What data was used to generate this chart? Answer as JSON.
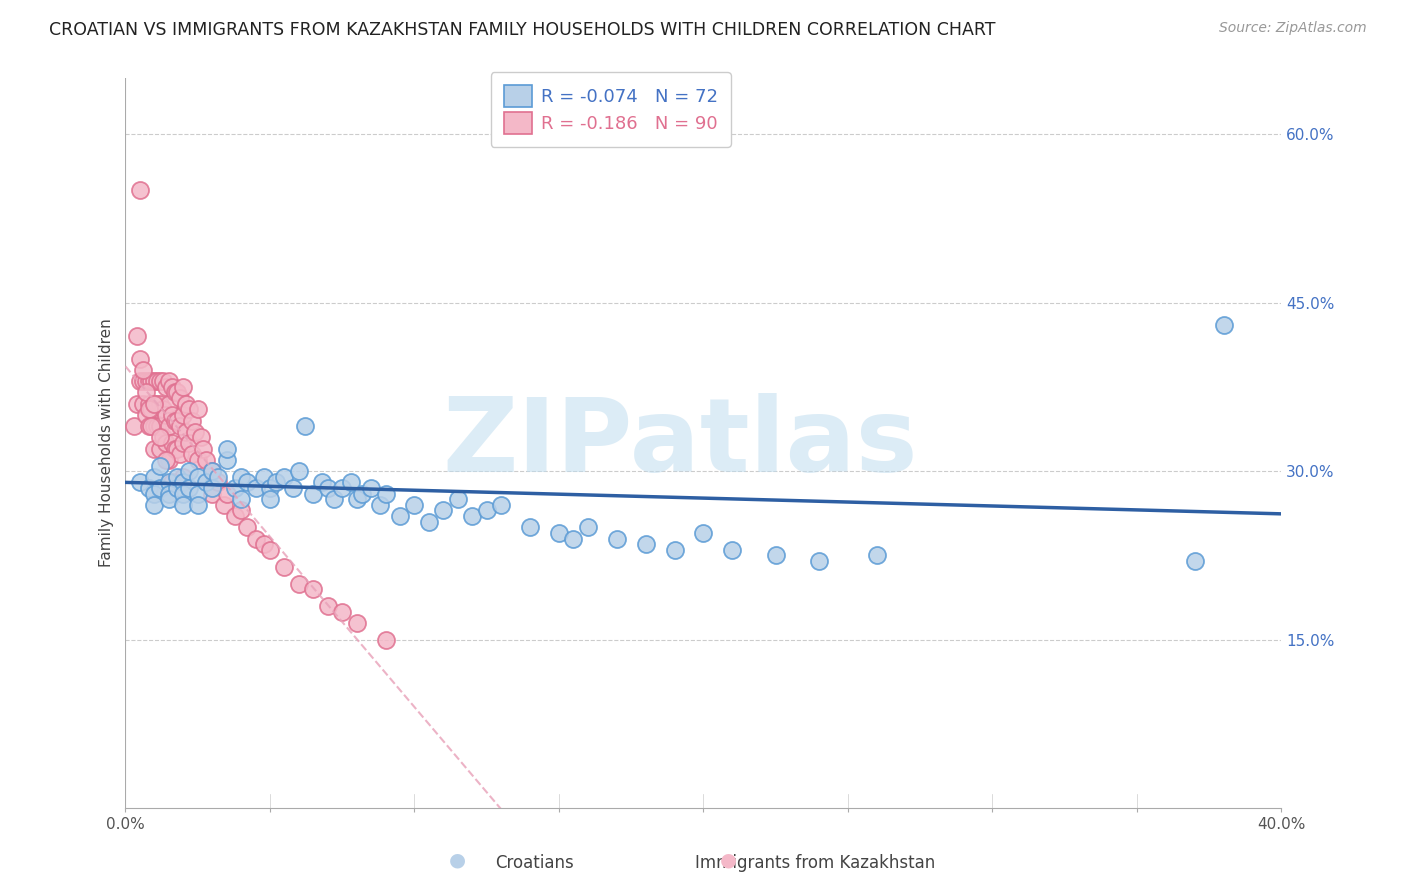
{
  "title": "CROATIAN VS IMMIGRANTS FROM KAZAKHSTAN FAMILY HOUSEHOLDS WITH CHILDREN CORRELATION CHART",
  "source": "Source: ZipAtlas.com",
  "ylabel": "Family Households with Children",
  "xlim": [
    0.0,
    0.4
  ],
  "ylim": [
    0.0,
    0.65
  ],
  "yticks_right": [
    0.15,
    0.3,
    0.45,
    0.6
  ],
  "ytick_labels_right": [
    "15.0%",
    "30.0%",
    "45.0%",
    "60.0%"
  ],
  "xticks": [
    0.0,
    0.05,
    0.1,
    0.15,
    0.2,
    0.25,
    0.3,
    0.35,
    0.4
  ],
  "blue_color": "#b8d0e8",
  "blue_edge_color": "#5b9bd5",
  "pink_color": "#f4b8c8",
  "pink_edge_color": "#e07090",
  "blue_line_color": "#2e5fa3",
  "pink_line_color": "#e8a0b8",
  "watermark_text": "ZIPatlas",
  "legend_label_blue": "R = -0.074   N = 72",
  "legend_label_pink": "R = -0.186   N = 90",
  "bottom_label_blue": "Croatians",
  "bottom_label_pink": "Immigrants from Kazakhstan",
  "title_fontsize": 12.5,
  "source_fontsize": 10,
  "axis_label_fontsize": 11,
  "tick_fontsize": 11,
  "legend_fontsize": 13,
  "blue_scatter_x": [
    0.005,
    0.008,
    0.01,
    0.01,
    0.01,
    0.012,
    0.012,
    0.015,
    0.015,
    0.015,
    0.018,
    0.018,
    0.02,
    0.02,
    0.02,
    0.022,
    0.022,
    0.025,
    0.025,
    0.025,
    0.028,
    0.03,
    0.03,
    0.032,
    0.035,
    0.035,
    0.038,
    0.04,
    0.04,
    0.042,
    0.045,
    0.048,
    0.05,
    0.05,
    0.052,
    0.055,
    0.058,
    0.06,
    0.062,
    0.065,
    0.068,
    0.07,
    0.072,
    0.075,
    0.078,
    0.08,
    0.082,
    0.085,
    0.088,
    0.09,
    0.095,
    0.1,
    0.105,
    0.11,
    0.115,
    0.12,
    0.125,
    0.13,
    0.14,
    0.15,
    0.155,
    0.16,
    0.17,
    0.18,
    0.19,
    0.2,
    0.21,
    0.225,
    0.24,
    0.26,
    0.38,
    0.37
  ],
  "blue_scatter_y": [
    0.29,
    0.285,
    0.295,
    0.28,
    0.27,
    0.285,
    0.305,
    0.29,
    0.28,
    0.275,
    0.285,
    0.295,
    0.29,
    0.28,
    0.27,
    0.3,
    0.285,
    0.295,
    0.28,
    0.27,
    0.29,
    0.3,
    0.285,
    0.295,
    0.31,
    0.32,
    0.285,
    0.295,
    0.275,
    0.29,
    0.285,
    0.295,
    0.285,
    0.275,
    0.29,
    0.295,
    0.285,
    0.3,
    0.34,
    0.28,
    0.29,
    0.285,
    0.275,
    0.285,
    0.29,
    0.275,
    0.28,
    0.285,
    0.27,
    0.28,
    0.26,
    0.27,
    0.255,
    0.265,
    0.275,
    0.26,
    0.265,
    0.27,
    0.25,
    0.245,
    0.24,
    0.25,
    0.24,
    0.235,
    0.23,
    0.245,
    0.23,
    0.225,
    0.22,
    0.225,
    0.43,
    0.22
  ],
  "pink_scatter_x": [
    0.003,
    0.004,
    0.005,
    0.005,
    0.006,
    0.006,
    0.007,
    0.007,
    0.008,
    0.008,
    0.008,
    0.009,
    0.009,
    0.01,
    0.01,
    0.01,
    0.01,
    0.011,
    0.011,
    0.011,
    0.012,
    0.012,
    0.012,
    0.012,
    0.013,
    0.013,
    0.013,
    0.014,
    0.014,
    0.014,
    0.015,
    0.015,
    0.015,
    0.015,
    0.016,
    0.016,
    0.016,
    0.017,
    0.017,
    0.017,
    0.018,
    0.018,
    0.018,
    0.019,
    0.019,
    0.019,
    0.02,
    0.02,
    0.02,
    0.02,
    0.021,
    0.021,
    0.022,
    0.022,
    0.023,
    0.023,
    0.024,
    0.025,
    0.025,
    0.026,
    0.027,
    0.028,
    0.03,
    0.03,
    0.032,
    0.034,
    0.035,
    0.038,
    0.04,
    0.042,
    0.045,
    0.048,
    0.05,
    0.055,
    0.06,
    0.065,
    0.07,
    0.075,
    0.08,
    0.09,
    0.004,
    0.005,
    0.006,
    0.007,
    0.008,
    0.009,
    0.01,
    0.012,
    0.014,
    0.016
  ],
  "pink_scatter_y": [
    0.34,
    0.36,
    0.55,
    0.38,
    0.38,
    0.36,
    0.38,
    0.35,
    0.38,
    0.36,
    0.34,
    0.38,
    0.355,
    0.38,
    0.36,
    0.34,
    0.32,
    0.38,
    0.36,
    0.34,
    0.38,
    0.36,
    0.34,
    0.32,
    0.38,
    0.355,
    0.33,
    0.375,
    0.35,
    0.325,
    0.38,
    0.36,
    0.34,
    0.31,
    0.375,
    0.35,
    0.325,
    0.37,
    0.345,
    0.32,
    0.37,
    0.345,
    0.32,
    0.365,
    0.34,
    0.315,
    0.375,
    0.35,
    0.325,
    0.295,
    0.36,
    0.335,
    0.355,
    0.325,
    0.345,
    0.315,
    0.335,
    0.355,
    0.31,
    0.33,
    0.32,
    0.31,
    0.3,
    0.28,
    0.29,
    0.27,
    0.28,
    0.26,
    0.265,
    0.25,
    0.24,
    0.235,
    0.23,
    0.215,
    0.2,
    0.195,
    0.18,
    0.175,
    0.165,
    0.15,
    0.42,
    0.4,
    0.39,
    0.37,
    0.355,
    0.34,
    0.36,
    0.33,
    0.31,
    0.29
  ],
  "pink_line_x_end": 0.4,
  "blue_line_start_y": 0.29,
  "blue_line_end_y": 0.262
}
